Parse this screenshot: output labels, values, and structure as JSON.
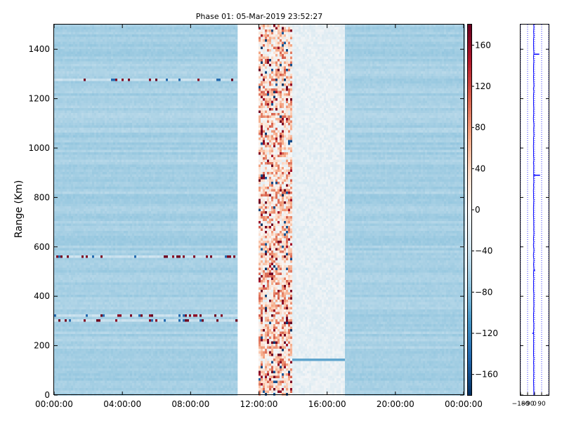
{
  "chart_data": [
    {
      "type": "heatmap",
      "title": "Phase 01: 05-Mar-2019 23:52:27",
      "ylabel": "Range (Km)",
      "xlabel": "",
      "xlim": [
        "00:00:00",
        "24:00:00"
      ],
      "ylim": [
        0,
        1500
      ],
      "x_ticks": [
        "00:00:00",
        "04:00:00",
        "08:00:00",
        "12:00:00",
        "16:00:00",
        "20:00:00",
        "00:00:00"
      ],
      "x_tick_hours": [
        0,
        4,
        8,
        12,
        16,
        20,
        24
      ],
      "y_ticks": [
        0,
        200,
        400,
        600,
        800,
        1000,
        1200,
        1400
      ],
      "colorbar": {
        "range": [
          -180,
          180
        ],
        "ticks": [
          160,
          120,
          80,
          40,
          0,
          -40,
          -80,
          -120,
          -160
        ],
        "tick_labels": [
          "160",
          "120",
          "80",
          "40",
          "0",
          "−40",
          "−80",
          "−120",
          "−160"
        ],
        "colormap": "RdBu_r"
      },
      "data_gap_hours": [
        10.7,
        11.9
      ],
      "noisy_band_hours": [
        11.9,
        13.9
      ],
      "quiet_band_hours": [
        13.9,
        17.0
      ],
      "background_phase": -60,
      "strong_echo_ranges_km": [
        1275,
        560,
        320,
        300,
        145
      ]
    },
    {
      "type": "line",
      "title": "",
      "xlim": [
        -180,
        180
      ],
      "ylim": [
        0,
        1500
      ],
      "x_tick_labels": [
        "−180",
        "−90",
        "0",
        "90"
      ],
      "x_tick_values": [
        -180,
        -90,
        0,
        90
      ],
      "series_color": "#0000ff"
    }
  ]
}
